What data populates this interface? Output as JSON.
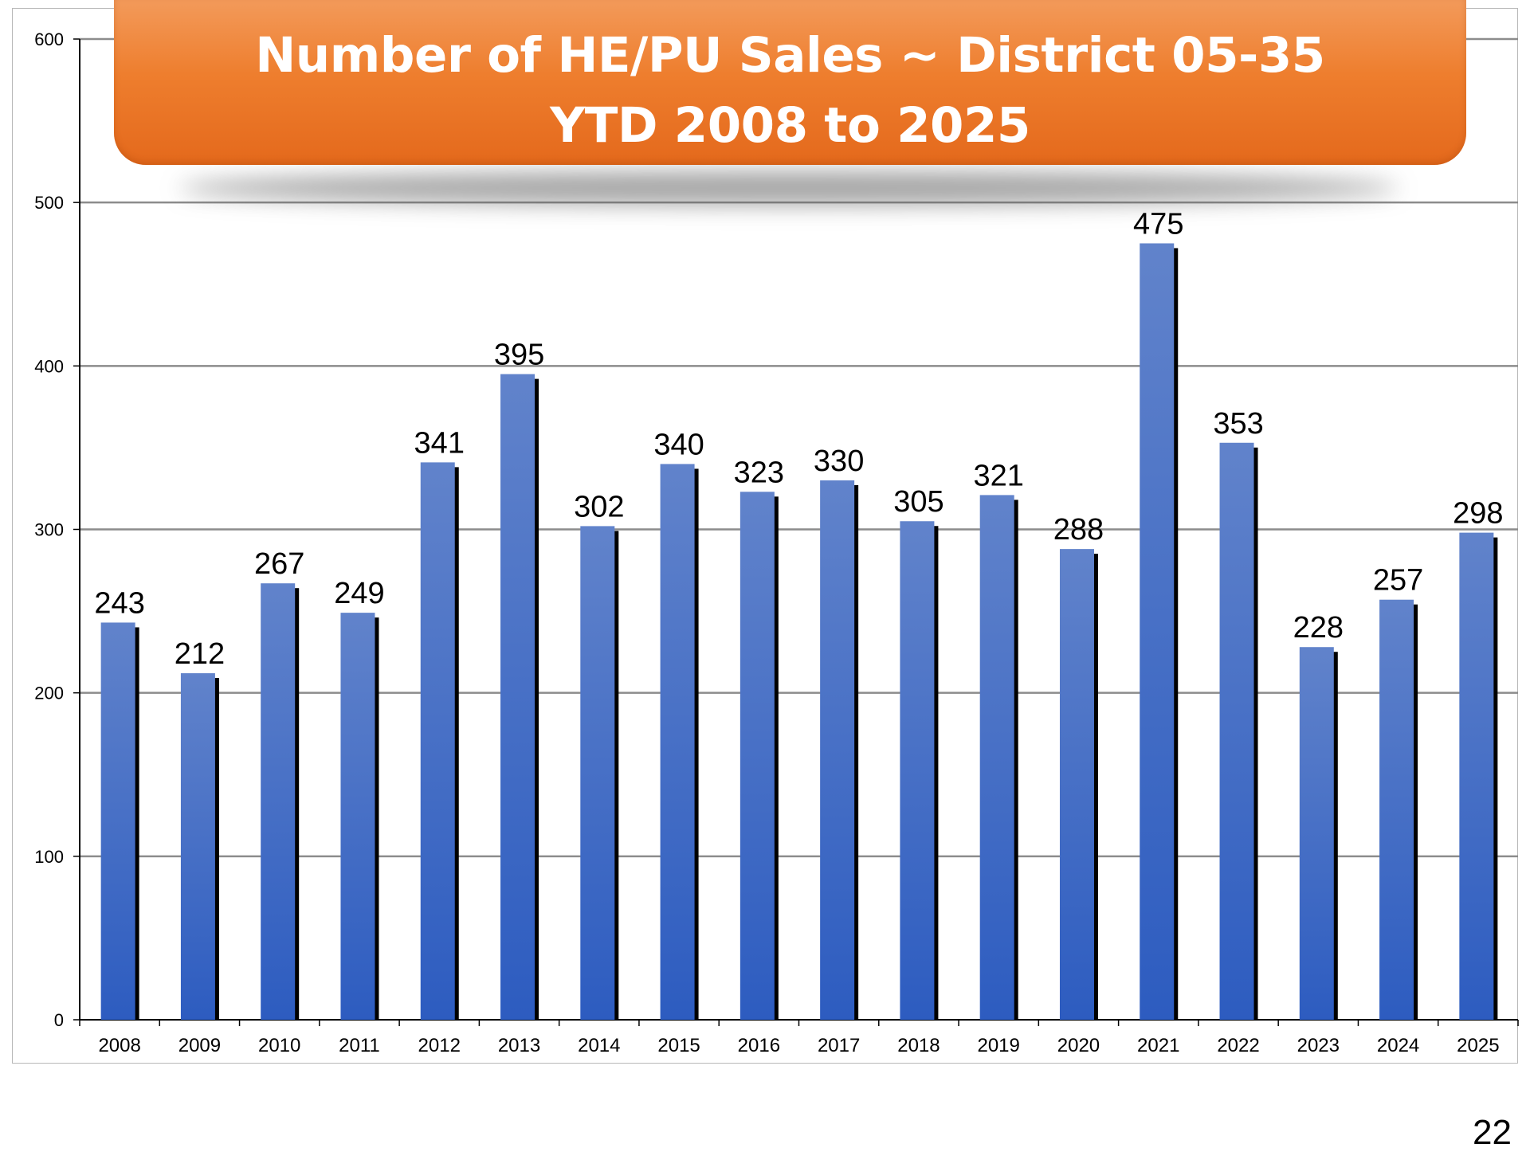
{
  "page_number": "22",
  "chart_data": {
    "type": "bar",
    "title": "Number of HE/PU Sales ~ District 05-35",
    "subtitle": "YTD 2008 to 2025",
    "xlabel": "",
    "ylabel": "",
    "ylim": [
      0,
      600
    ],
    "yticks": [
      0,
      100,
      200,
      300,
      400,
      500,
      600
    ],
    "grid": true,
    "legend": "none",
    "data_labels": true,
    "categories": [
      "2008",
      "2009",
      "2010",
      "2011",
      "2012",
      "2013",
      "2014",
      "2015",
      "2016",
      "2017",
      "2018",
      "2019",
      "2020",
      "2021",
      "2022",
      "2023",
      "2024",
      "2025"
    ],
    "values": [
      243,
      212,
      267,
      249,
      341,
      395,
      302,
      340,
      323,
      330,
      305,
      321,
      288,
      475,
      353,
      228,
      257,
      298
    ],
    "colors": {
      "bar_top": "#6183cb",
      "bar_bottom": "#2d5cc0",
      "bar_shadow": "#000000",
      "grid": "#8c8c8c",
      "title_bg": "#ee7e2e",
      "title_text": "#ffffff"
    }
  }
}
